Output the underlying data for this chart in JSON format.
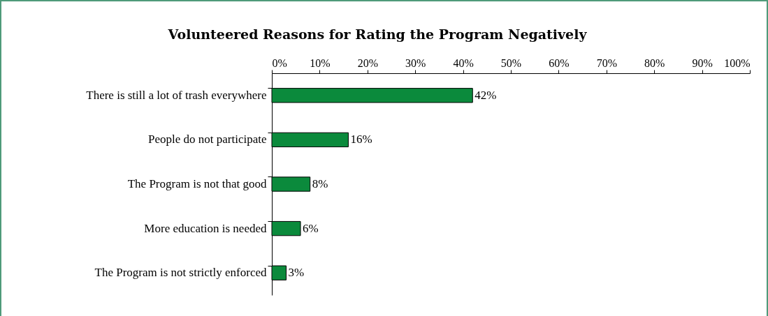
{
  "chart_data": {
    "type": "bar",
    "orientation": "horizontal",
    "title": "Volunteered Reasons for Rating the Program Negatively",
    "categories": [
      "There is still a lot of trash everywhere",
      "People do not participate",
      "The Program is not that good",
      "More education is needed",
      "The Program is not strictly enforced"
    ],
    "values": [
      42,
      16,
      8,
      6,
      3
    ],
    "value_labels": [
      "42%",
      "16%",
      "8%",
      "6%",
      "3%"
    ],
    "color": "#0b8a3c",
    "xlim": [
      0,
      100
    ],
    "xticks": [
      {
        "value": 0,
        "label": "0%"
      },
      {
        "value": 10,
        "label": "10%"
      },
      {
        "value": 20,
        "label": "20%"
      },
      {
        "value": 30,
        "label": "30%"
      },
      {
        "value": 40,
        "label": "40%"
      },
      {
        "value": 50,
        "label": "50%"
      },
      {
        "value": 60,
        "label": "60%"
      },
      {
        "value": 70,
        "label": "70%"
      },
      {
        "value": 80,
        "label": "80%"
      },
      {
        "value": 90,
        "label": "90%"
      },
      {
        "value": 100,
        "label": "100%"
      }
    ],
    "grid": false
  }
}
